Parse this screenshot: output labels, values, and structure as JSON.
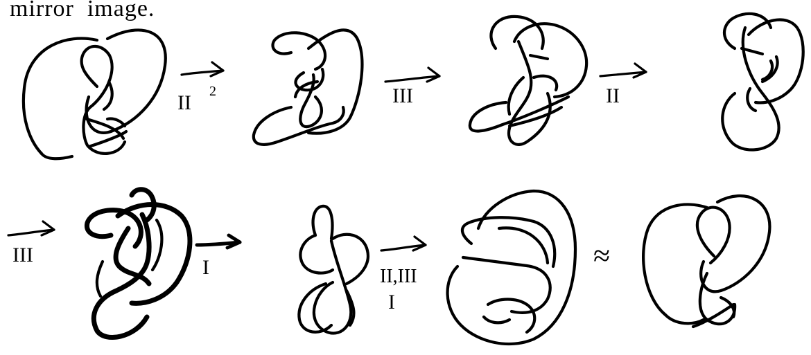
{
  "caption": "mirror  image.",
  "moves": [
    {
      "id": "m1",
      "label": "II",
      "superscript": "2"
    },
    {
      "id": "m2",
      "label": "III"
    },
    {
      "id": "m3",
      "label": "II"
    },
    {
      "id": "m4",
      "label": "III"
    },
    {
      "id": "m5",
      "label": "I"
    },
    {
      "id": "m6",
      "label_top": "II,III",
      "label_bottom": "I"
    }
  ],
  "equivalence_symbol": "≈"
}
